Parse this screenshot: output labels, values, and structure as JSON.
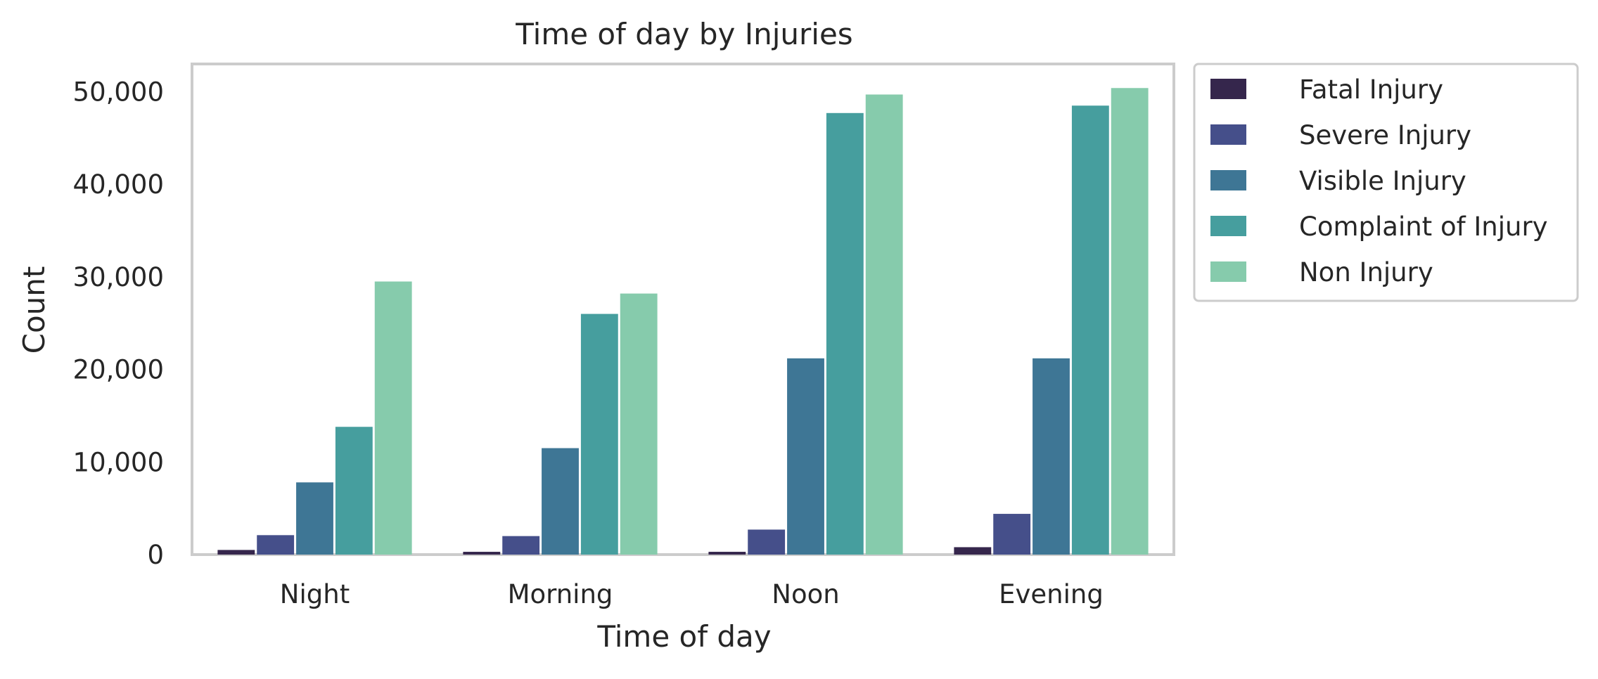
{
  "chart_data": {
    "type": "bar",
    "title": "Time of day by Injuries",
    "xlabel": "Time of day",
    "ylabel": "Count",
    "categories": [
      "Night",
      "Morning",
      "Noon",
      "Evening"
    ],
    "ylim": [
      0,
      53000
    ],
    "yticks": [
      0,
      10000,
      20000,
      30000,
      40000,
      50000
    ],
    "ytick_labels": [
      "0",
      "10,000",
      "20,000",
      "30,000",
      "40,000",
      "50,000"
    ],
    "grid": false,
    "legend_position": "outside-top-right",
    "series": [
      {
        "name": "Fatal Injury",
        "color": "#35264c",
        "values": [
          500,
          300,
          300,
          800
        ]
      },
      {
        "name": "Severe Injury",
        "color": "#454f8a",
        "values": [
          2100,
          2000,
          2700,
          4400
        ]
      },
      {
        "name": "Visible Injury",
        "color": "#3e7695",
        "values": [
          7800,
          11500,
          21200,
          21200
        ]
      },
      {
        "name": "Complaint of Injury",
        "color": "#469e9e",
        "values": [
          13800,
          26000,
          47700,
          48500
        ]
      },
      {
        "name": "Non Injury",
        "color": "#86cbac",
        "values": [
          29500,
          28200,
          49700,
          50400
        ]
      }
    ]
  }
}
